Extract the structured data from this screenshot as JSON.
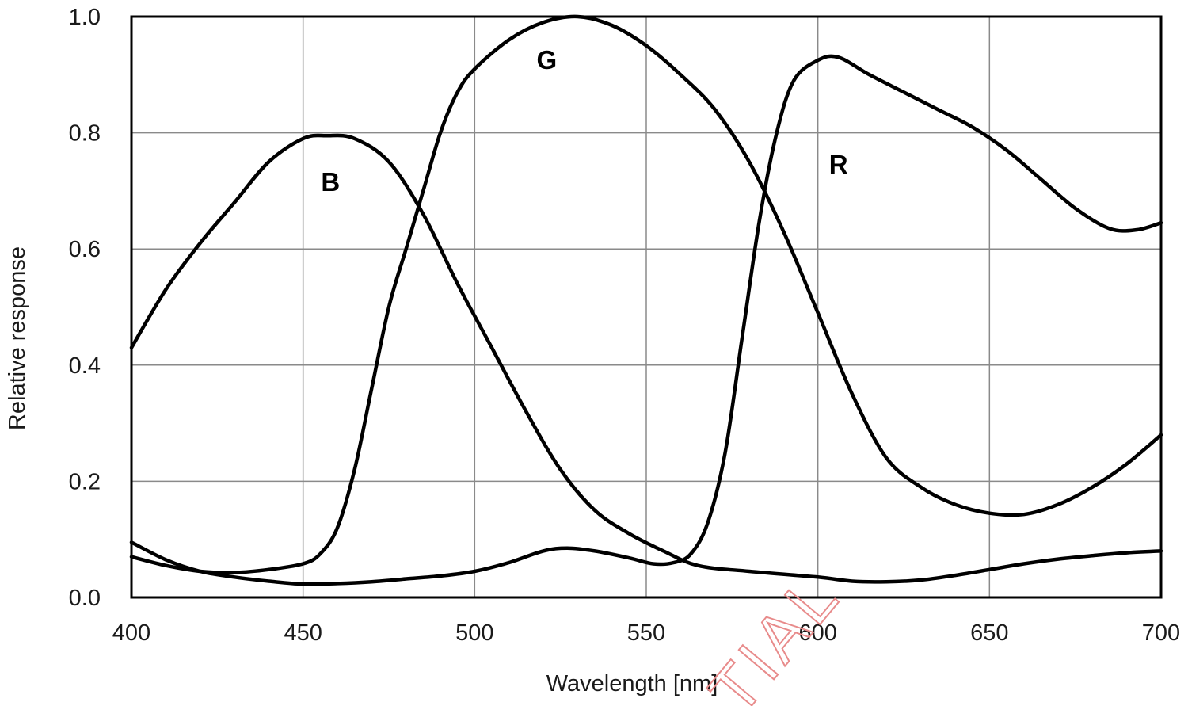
{
  "chart_data": {
    "type": "line",
    "title": "",
    "xlabel": "Wavelength [nm]",
    "ylabel": "Relative response",
    "xlim": [
      400,
      700
    ],
    "ylim": [
      0,
      1.0
    ],
    "grid": true,
    "legend": "none",
    "x_ticks": [
      400,
      450,
      500,
      550,
      600,
      650,
      700
    ],
    "x_tick_labels": [
      "400",
      "450",
      "500",
      "550",
      "600",
      "650",
      "700"
    ],
    "y_ticks": [
      0,
      0.2,
      0.4,
      0.6,
      0.8,
      1.0
    ],
    "y_tick_labels": [
      "0.0",
      "0.2",
      "0.4",
      "0.6",
      "0.8",
      "1.0"
    ],
    "colors": {
      "line": "#000000",
      "grid": "#8a8a8a",
      "frame": "#000000",
      "watermark": "#e88b8b"
    },
    "series": [
      {
        "name": "B",
        "points": [
          [
            400,
            0.43
          ],
          [
            410,
            0.53
          ],
          [
            420,
            0.61
          ],
          [
            430,
            0.68
          ],
          [
            440,
            0.75
          ],
          [
            450,
            0.79
          ],
          [
            457,
            0.795
          ],
          [
            465,
            0.79
          ],
          [
            475,
            0.75
          ],
          [
            485,
            0.66
          ],
          [
            495,
            0.54
          ],
          [
            505,
            0.43
          ],
          [
            515,
            0.32
          ],
          [
            525,
            0.22
          ],
          [
            535,
            0.15
          ],
          [
            545,
            0.11
          ],
          [
            555,
            0.08
          ],
          [
            565,
            0.055
          ],
          [
            580,
            0.045
          ],
          [
            600,
            0.035
          ],
          [
            610,
            0.028
          ],
          [
            620,
            0.027
          ],
          [
            630,
            0.03
          ],
          [
            640,
            0.038
          ],
          [
            650,
            0.048
          ],
          [
            660,
            0.058
          ],
          [
            670,
            0.066
          ],
          [
            680,
            0.072
          ],
          [
            690,
            0.077
          ],
          [
            700,
            0.08
          ]
        ]
      },
      {
        "name": "G",
        "points": [
          [
            400,
            0.07
          ],
          [
            410,
            0.055
          ],
          [
            420,
            0.045
          ],
          [
            430,
            0.043
          ],
          [
            440,
            0.048
          ],
          [
            450,
            0.058
          ],
          [
            455,
            0.075
          ],
          [
            460,
            0.12
          ],
          [
            465,
            0.22
          ],
          [
            470,
            0.36
          ],
          [
            475,
            0.5
          ],
          [
            480,
            0.6
          ],
          [
            485,
            0.7
          ],
          [
            490,
            0.8
          ],
          [
            495,
            0.87
          ],
          [
            500,
            0.91
          ],
          [
            510,
            0.96
          ],
          [
            520,
            0.99
          ],
          [
            530,
            1.0
          ],
          [
            540,
            0.985
          ],
          [
            550,
            0.95
          ],
          [
            560,
            0.9
          ],
          [
            570,
            0.84
          ],
          [
            580,
            0.75
          ],
          [
            590,
            0.63
          ],
          [
            600,
            0.49
          ],
          [
            610,
            0.35
          ],
          [
            620,
            0.24
          ],
          [
            630,
            0.19
          ],
          [
            640,
            0.16
          ],
          [
            650,
            0.145
          ],
          [
            660,
            0.143
          ],
          [
            670,
            0.16
          ],
          [
            680,
            0.19
          ],
          [
            690,
            0.23
          ],
          [
            700,
            0.28
          ]
        ]
      },
      {
        "name": "R",
        "points": [
          [
            400,
            0.095
          ],
          [
            410,
            0.065
          ],
          [
            420,
            0.045
          ],
          [
            430,
            0.035
          ],
          [
            440,
            0.028
          ],
          [
            450,
            0.023
          ],
          [
            460,
            0.024
          ],
          [
            470,
            0.027
          ],
          [
            480,
            0.032
          ],
          [
            490,
            0.037
          ],
          [
            500,
            0.045
          ],
          [
            510,
            0.06
          ],
          [
            520,
            0.08
          ],
          [
            527,
            0.085
          ],
          [
            535,
            0.08
          ],
          [
            545,
            0.068
          ],
          [
            552,
            0.058
          ],
          [
            558,
            0.06
          ],
          [
            563,
            0.075
          ],
          [
            568,
            0.13
          ],
          [
            573,
            0.25
          ],
          [
            578,
            0.45
          ],
          [
            583,
            0.65
          ],
          [
            588,
            0.8
          ],
          [
            593,
            0.89
          ],
          [
            600,
            0.925
          ],
          [
            606,
            0.93
          ],
          [
            615,
            0.9
          ],
          [
            625,
            0.87
          ],
          [
            635,
            0.84
          ],
          [
            645,
            0.81
          ],
          [
            655,
            0.77
          ],
          [
            665,
            0.72
          ],
          [
            675,
            0.67
          ],
          [
            685,
            0.635
          ],
          [
            693,
            0.633
          ],
          [
            700,
            0.645
          ]
        ]
      }
    ],
    "annotations": [
      {
        "text": "B",
        "x": 458,
        "y": 0.7
      },
      {
        "text": "G",
        "x": 521,
        "y": 0.91
      },
      {
        "text": "R",
        "x": 606,
        "y": 0.73
      }
    ]
  }
}
